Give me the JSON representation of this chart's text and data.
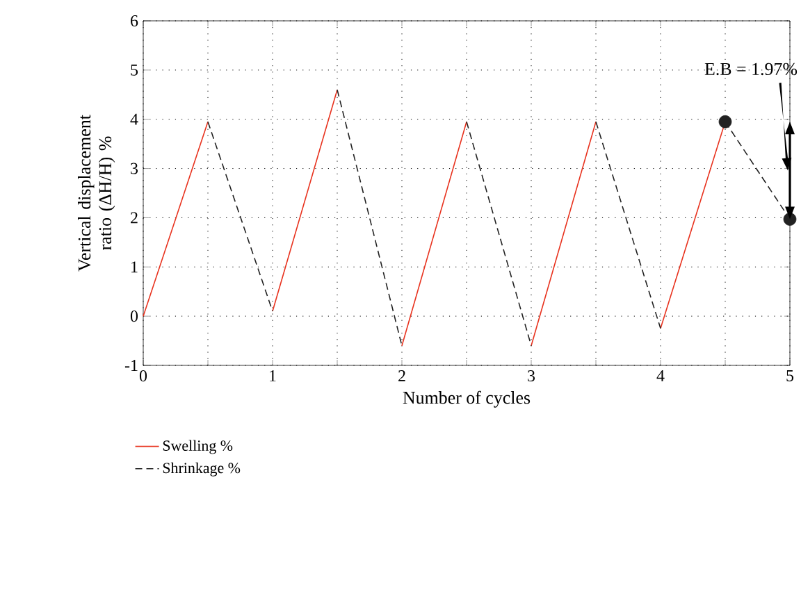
{
  "chart_data": {
    "type": "line",
    "xlabel": "Number of cycles",
    "ylabel": "Vertical displacement ratio (ΔH/H) %",
    "xlim": [
      0,
      5
    ],
    "ylim": [
      -1,
      6
    ],
    "xticks": [
      0,
      {
        "value": 0.5,
        "label": null
      },
      1,
      {
        "value": 1.5,
        "label": null
      },
      2,
      {
        "value": 2.5,
        "label": null
      },
      3,
      {
        "value": 3.5,
        "label": null
      },
      4,
      {
        "value": 4.5,
        "label": null
      },
      5
    ],
    "yticks": [
      -1,
      0,
      1,
      2,
      3,
      4,
      5,
      6
    ],
    "grid": true,
    "legend": "bottom left",
    "series": [
      {
        "name": "Swelling %",
        "color": "#e8321e",
        "line_style": "solid",
        "x": [
          0,
          0.5,
          0.75,
          1,
          1.5,
          1.75,
          2,
          2.5,
          2.75,
          3,
          3.5,
          3.75,
          4,
          4.5
        ],
        "values": [
          0,
          3.95,
          null,
          0.1,
          4.6,
          null,
          -0.6,
          3.95,
          null,
          -0.6,
          3.95,
          null,
          -0.25,
          3.95
        ]
      },
      {
        "name": "Shrinkage %",
        "color": "#222222",
        "line_style": "dashed",
        "x": [
          0.5,
          1,
          1.25,
          1.5,
          2,
          2.25,
          2.5,
          3,
          3.25,
          3.5,
          4,
          4.25,
          4.5,
          5
        ],
        "values": [
          3.95,
          0.1,
          null,
          4.6,
          -0.6,
          null,
          3.95,
          -0.6,
          null,
          3.95,
          -0.25,
          null,
          3.95,
          1.97
        ]
      },
      {
        "type": "scatter",
        "color": "#222222",
        "x": [
          4.5,
          5
        ],
        "values": [
          3.95,
          1.97
        ]
      }
    ],
    "annotations": [
      "E.B = 1.97%"
    ]
  }
}
